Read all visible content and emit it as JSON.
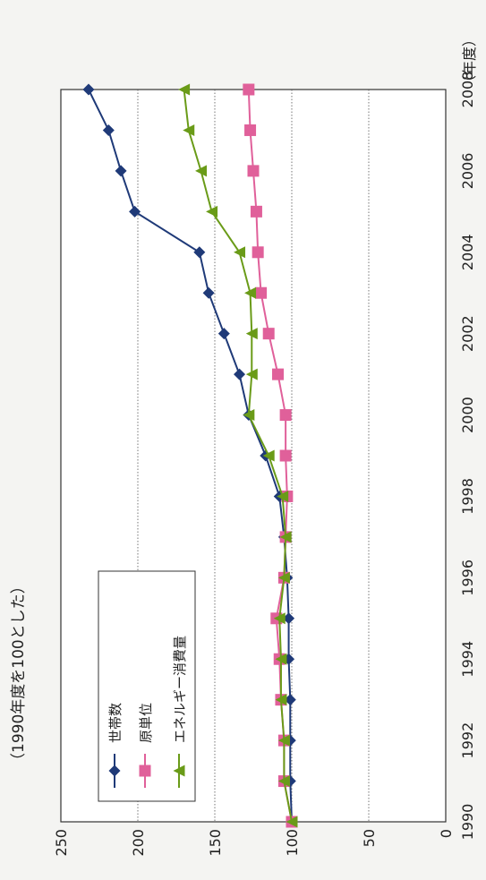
{
  "chart_data": {
    "type": "line",
    "subtitle": "（1990年度を100とした）",
    "unit_label": "（年度）",
    "x": [
      1990,
      1991,
      1992,
      1993,
      1994,
      1995,
      1996,
      1997,
      1998,
      1999,
      2000,
      2001,
      2002,
      2003,
      2004,
      2005,
      2006,
      2007,
      2008
    ],
    "x_ticks": [
      "1990",
      "1992",
      "1994",
      "1996",
      "1998",
      "2000",
      "2002",
      "2004",
      "2006",
      "2008"
    ],
    "y_ticks": [
      "0",
      "50",
      "100",
      "150",
      "200",
      "250"
    ],
    "ylim": [
      0,
      250
    ],
    "xlim": [
      1990,
      2008
    ],
    "grid": true,
    "legend_position": "bottom-right (rotated)",
    "orientation": "rotated 90° counter-clockwise",
    "series": [
      {
        "name": "世帯数",
        "color": "#1f3a78",
        "marker": "diamond",
        "values": [
          100,
          101,
          101,
          101,
          102,
          102,
          103,
          105,
          108,
          117,
          128,
          134,
          144,
          154,
          160,
          202,
          211,
          219,
          232
        ]
      },
      {
        "name": "原単位",
        "color": "#e0609a",
        "marker": "square",
        "values": [
          100,
          105,
          105,
          107,
          108,
          110,
          105,
          104,
          103,
          104,
          104,
          109,
          115,
          120,
          122,
          123,
          125,
          127,
          128
        ]
      },
      {
        "name": "エネルギー消費量",
        "color": "#6a9b18",
        "marker": "triangle",
        "values": [
          100,
          105,
          105,
          107,
          107,
          108,
          105,
          104,
          106,
          115,
          128,
          126,
          126,
          127,
          134,
          152,
          159,
          167,
          170
        ]
      }
    ]
  }
}
